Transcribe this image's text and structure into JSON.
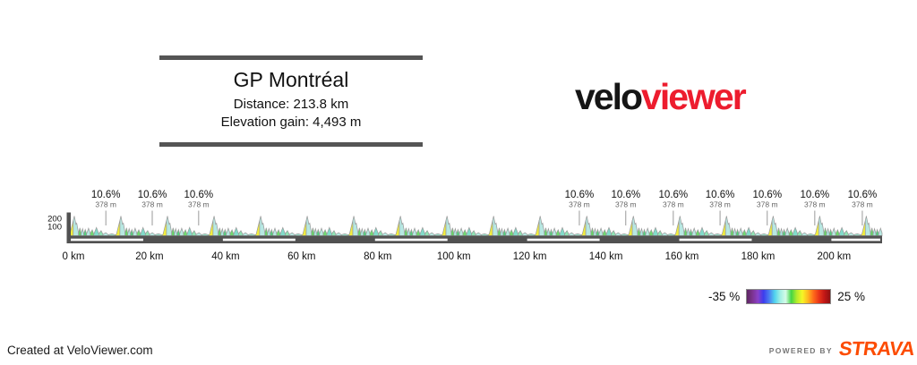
{
  "header": {
    "title": "GP Montréal",
    "distance": "Distance: 213.8 km",
    "elevation_gain": "Elevation gain: 4,493 m"
  },
  "logo": {
    "part1": "velo",
    "part2": "viewer",
    "part1_color": "#151515",
    "part2_color": "#ed1c2e"
  },
  "legend": {
    "min_label": "-35 %",
    "max_label": "25 %",
    "gradient_stops": [
      "#5e2663",
      "#7c3390",
      "#8a41c8",
      "#3c3cee",
      "#4b7df0",
      "#4fd2ee",
      "#a0f0e4",
      "#d6fbe8",
      "#44d544",
      "#b4ec2c",
      "#f6f626",
      "#ffb81f",
      "#ff6a1a",
      "#e93419",
      "#c01616",
      "#8e1111"
    ]
  },
  "footer": {
    "credit": "Created at VeloViewer.com",
    "powered_by": "POWERED BY",
    "brand": "STRAVA",
    "brand_color": "#fc4c02"
  },
  "chart_data": {
    "type": "area",
    "title": "GP Montréal",
    "distance_km": 213.8,
    "elevation_gain_m": 4493,
    "x_axis": {
      "unit": "km",
      "km_end": 213.8,
      "ticks": [
        {
          "km": 0,
          "label": "0 km"
        },
        {
          "km": 20,
          "label": "20 km"
        },
        {
          "km": 40,
          "label": "40 km"
        },
        {
          "km": 60,
          "label": "60 km"
        },
        {
          "km": 80,
          "label": "80 km"
        },
        {
          "km": 100,
          "label": "100 km"
        },
        {
          "km": 120,
          "label": "120 km"
        },
        {
          "km": 140,
          "label": "140 km"
        },
        {
          "km": 160,
          "label": "160 km"
        },
        {
          "km": 180,
          "label": "180 km"
        },
        {
          "km": 200,
          "label": "200 km"
        }
      ]
    },
    "y_axis": {
      "unit": "m",
      "ticks": [
        {
          "m": 200,
          "label": "200"
        },
        {
          "m": 100,
          "label": "100"
        }
      ]
    },
    "annotations": [
      {
        "km": 9.7,
        "gradient": "10.6%",
        "length": "378 m"
      },
      {
        "km": 21.9,
        "gradient": "10.6%",
        "length": "378 m"
      },
      {
        "km": 34.1,
        "gradient": "10.6%",
        "length": "378 m"
      },
      {
        "km": 134.2,
        "gradient": "10.6%",
        "length": "378 m"
      },
      {
        "km": 146.4,
        "gradient": "10.6%",
        "length": "378 m"
      },
      {
        "km": 158.9,
        "gradient": "10.6%",
        "length": "378 m"
      },
      {
        "km": 171.2,
        "gradient": "10.6%",
        "length": "378 m"
      },
      {
        "km": 183.6,
        "gradient": "10.6%",
        "length": "378 m"
      },
      {
        "km": 196.1,
        "gradient": "10.6%",
        "length": "378 m"
      },
      {
        "km": 208.6,
        "gradient": "10.6%",
        "length": "378 m"
      }
    ],
    "laps": {
      "length_km": 12.25,
      "peak_elevation_m": 233,
      "climb_gradient": "10.6%",
      "climb_length": "378 m"
    },
    "lap_shape": {
      "points": [
        [
          0.0,
          0.04
        ],
        [
          0.02,
          0.08
        ],
        [
          0.093,
          0.78
        ],
        [
          0.115,
          1.0
        ],
        [
          0.15,
          0.58
        ],
        [
          0.168,
          0.64
        ],
        [
          0.205,
          0.14
        ],
        [
          0.235,
          0.4
        ],
        [
          0.262,
          0.12
        ],
        [
          0.292,
          0.36
        ],
        [
          0.32,
          0.1
        ],
        [
          0.35,
          0.32
        ],
        [
          0.378,
          0.1
        ],
        [
          0.42,
          0.38
        ],
        [
          0.458,
          0.11
        ],
        [
          0.5,
          0.3
        ],
        [
          0.535,
          0.08
        ],
        [
          0.59,
          0.42
        ],
        [
          0.64,
          0.1
        ],
        [
          0.69,
          0.26
        ],
        [
          0.73,
          0.07
        ],
        [
          0.79,
          0.16
        ],
        [
          0.845,
          0.05
        ],
        [
          0.92,
          0.1
        ],
        [
          1.0,
          0.04
        ]
      ],
      "segments": [
        {
          "from": 0,
          "to": 2,
          "color": "#f2ee3d"
        },
        {
          "from": 2,
          "to": 6,
          "color": "#b7e8e2"
        },
        {
          "from": 6,
          "to": 8,
          "color": "#66d666"
        },
        {
          "from": 8,
          "to": 10,
          "color": "#a9e6e0"
        },
        {
          "from": 10,
          "to": 12,
          "color": "#55cf7d"
        },
        {
          "from": 12,
          "to": 14,
          "color": "#b7e8e2"
        },
        {
          "from": 14,
          "to": 16,
          "color": "#6fd96f"
        },
        {
          "from": 16,
          "to": 18,
          "color": "#82dbca"
        },
        {
          "from": 18,
          "to": 20,
          "color": "#8fe3b4"
        },
        {
          "from": 20,
          "to": 22,
          "color": "#b7e8e2"
        },
        {
          "from": 22,
          "to": 24,
          "color": "#9fe6cf"
        }
      ]
    },
    "colors": {
      "outline": "#999999",
      "axis_bar": "#515151",
      "scale_stripe": "#ffffff",
      "annotation_line": "#9a9a9a",
      "annotation_text": "#111111",
      "annotation_sub": "#666666",
      "tick_text": "#111111"
    }
  }
}
